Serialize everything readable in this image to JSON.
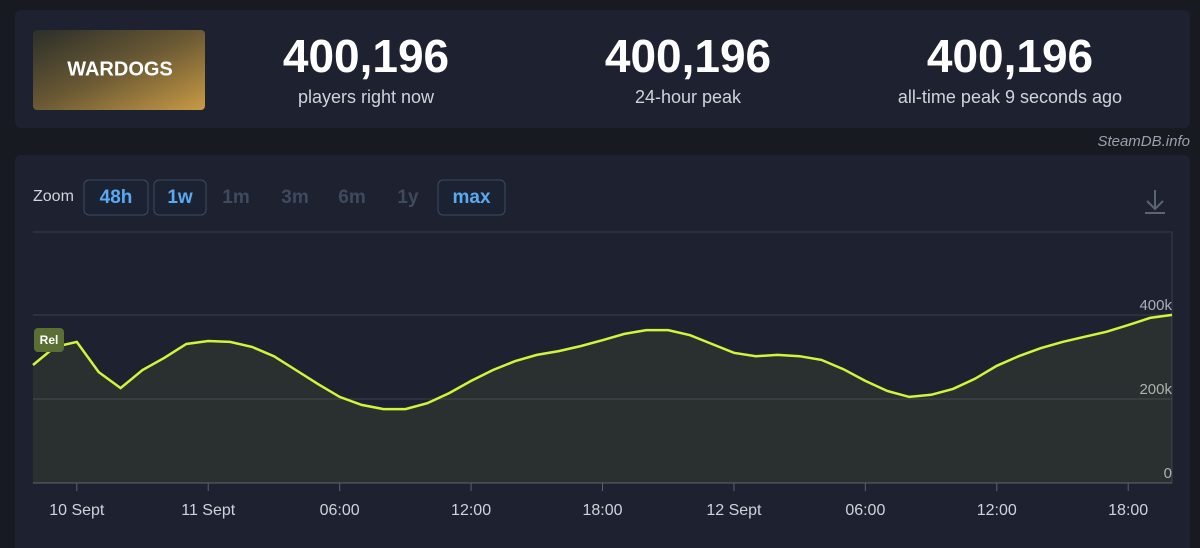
{
  "header": {
    "game": "WARDOGS",
    "stats": [
      {
        "value": "400,196",
        "label": "players right now"
      },
      {
        "value": "400,196",
        "label": "24-hour peak"
      },
      {
        "value": "400,196",
        "label": "all-time peak 9 seconds ago"
      }
    ]
  },
  "source": "SteamDB.info",
  "zoom": {
    "label": "Zoom",
    "options": [
      {
        "label": "48h",
        "enabled": true
      },
      {
        "label": "1w",
        "enabled": true
      },
      {
        "label": "1m",
        "enabled": false
      },
      {
        "label": "3m",
        "enabled": false
      },
      {
        "label": "6m",
        "enabled": false
      },
      {
        "label": "1y",
        "enabled": false
      },
      {
        "label": "max",
        "enabled": true
      }
    ]
  },
  "chart_data": {
    "type": "line",
    "annotation": "Rel",
    "color": "#d2f53c",
    "grid": true,
    "x": [
      -2,
      -1,
      0,
      1,
      2,
      3,
      4,
      5,
      6,
      7,
      8,
      9,
      10,
      11,
      12,
      13,
      14,
      15,
      16,
      17,
      18,
      19,
      20,
      21,
      22,
      23,
      24,
      25,
      26,
      27,
      28,
      29,
      30,
      31,
      32,
      33,
      34,
      35,
      36,
      37,
      38,
      39,
      40,
      41,
      42,
      43,
      44,
      45,
      46,
      47,
      48,
      49,
      50
    ],
    "values": [
      281000,
      324000,
      336000,
      264000,
      226000,
      269000,
      298000,
      331000,
      338000,
      336000,
      324000,
      302000,
      269000,
      236000,
      205000,
      186000,
      176000,
      176000,
      190000,
      214000,
      243000,
      269000,
      290000,
      305000,
      314000,
      326000,
      340000,
      355000,
      364000,
      364000,
      352000,
      331000,
      310000,
      302000,
      305000,
      302000,
      293000,
      271000,
      243000,
      219000,
      205000,
      210000,
      224000,
      248000,
      279000,
      302000,
      321000,
      336000,
      348000,
      360000,
      376000,
      393000,
      400196
    ],
    "xlim": [
      -2,
      50
    ],
    "xticks": [
      {
        "value": 0,
        "label": "10 Sept"
      },
      {
        "value": 6,
        "label": "11 Sept"
      },
      {
        "value": 12,
        "label": "06:00"
      },
      {
        "value": 18,
        "label": "12:00"
      },
      {
        "value": 24,
        "label": "18:00"
      },
      {
        "value": 30,
        "label": "12 Sept"
      },
      {
        "value": 36,
        "label": "06:00"
      },
      {
        "value": 42,
        "label": "12:00"
      },
      {
        "value": 48,
        "label": "18:00"
      }
    ],
    "ylim": [
      0,
      600000
    ],
    "yticks": [
      0,
      {
        "value": 200000,
        "label": "200k"
      },
      {
        "value": 400000,
        "label": "400k"
      }
    ]
  }
}
